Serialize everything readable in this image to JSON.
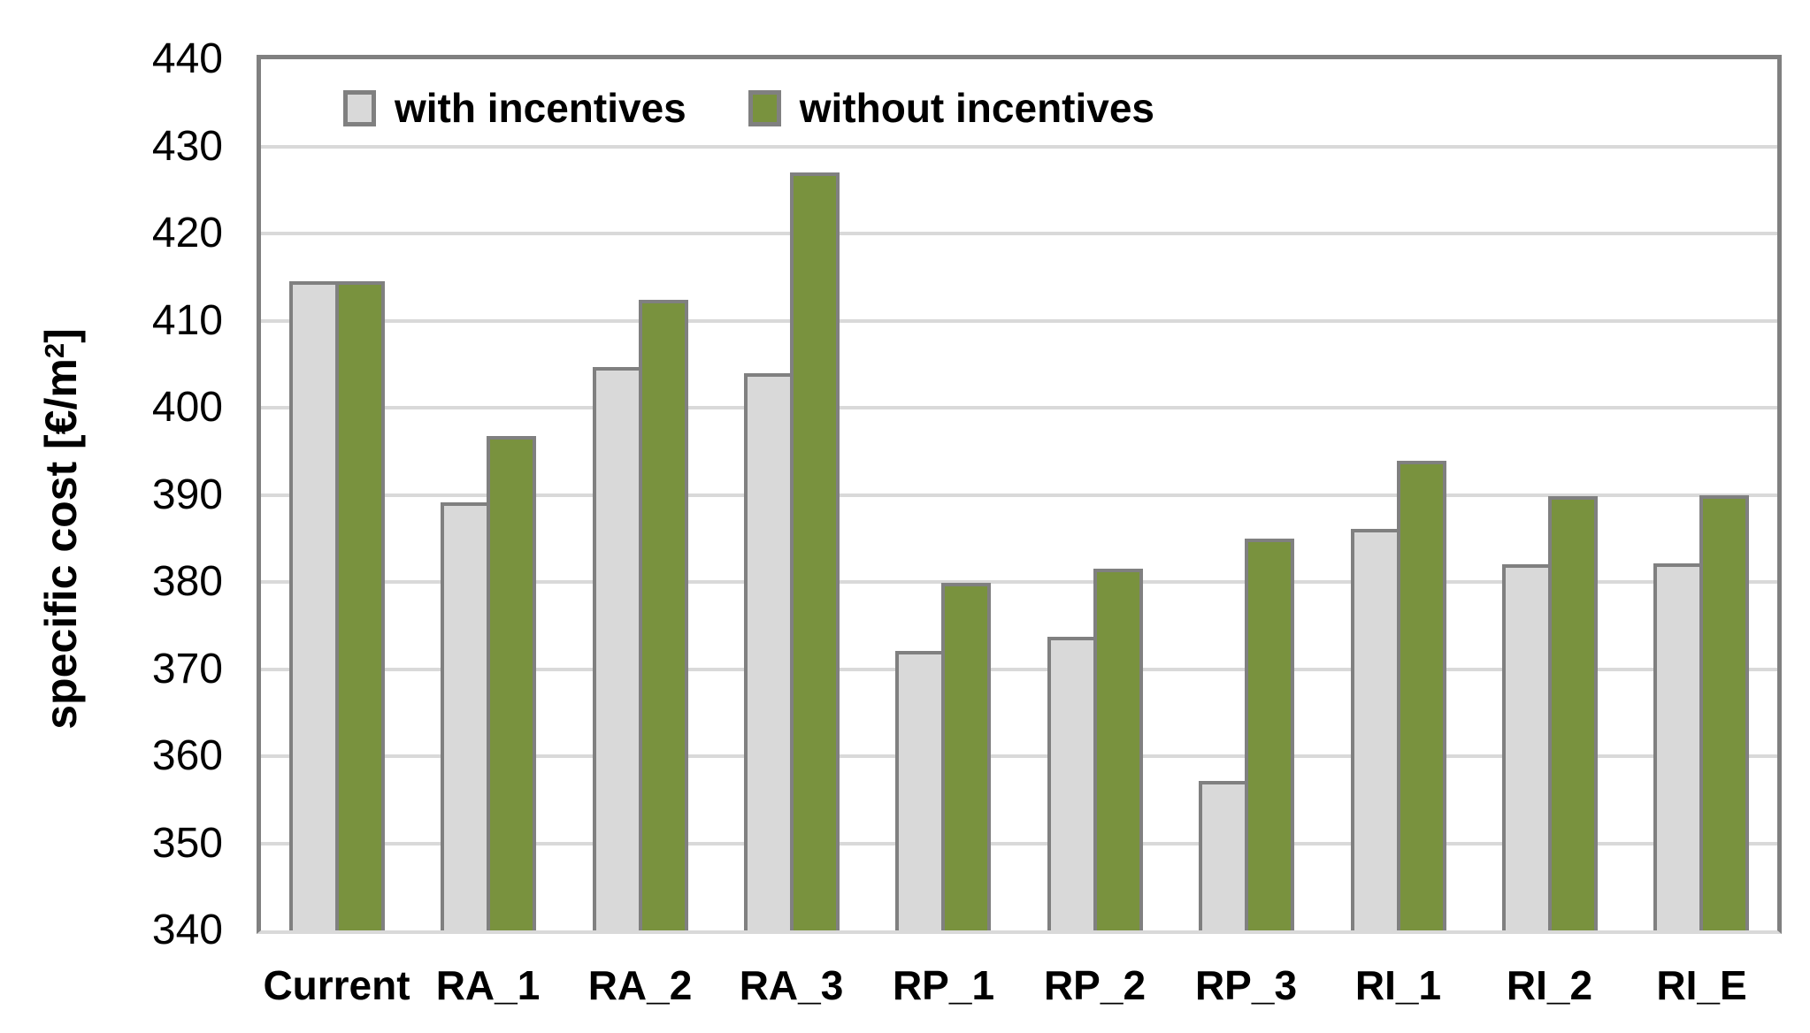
{
  "chart_data": {
    "type": "bar",
    "title": "",
    "ylabel": "specific cost [€/m²]",
    "ylabel_parts": {
      "prefix": "specific cost [€/m",
      "sup": "2",
      "suffix": "]"
    },
    "categories": [
      "Current",
      "RA_1",
      "RA_2",
      "RA_3",
      "RP_1",
      "RP_2",
      "RP_3",
      "RI_1",
      "RI_2",
      "RI_E"
    ],
    "series": [
      {
        "name": "with incentives",
        "color": "#D9D9D9",
        "values": [
          414.5,
          389.1,
          404.7,
          404.0,
          372.1,
          373.7,
          357.2,
          386.1,
          382.0,
          382.1
        ]
      },
      {
        "name": "without incentives",
        "color": "#79923E",
        "values": [
          414.5,
          396.8,
          412.4,
          427.0,
          379.9,
          381.5,
          385.0,
          393.9,
          389.8,
          389.9
        ]
      }
    ],
    "ylim": [
      340,
      440
    ],
    "ytick_step": 10,
    "yticks": [
      340,
      350,
      360,
      370,
      380,
      390,
      400,
      410,
      420,
      430,
      440
    ],
    "grid": true,
    "legend_position": "top-left-inside",
    "colors": {
      "bar_border": "#808080",
      "gridline": "#D9D9D9",
      "plot_border": "#808080",
      "axis_bottom_line": "#D9D9D9",
      "text": "#000000",
      "background": "#FFFFFF"
    }
  }
}
